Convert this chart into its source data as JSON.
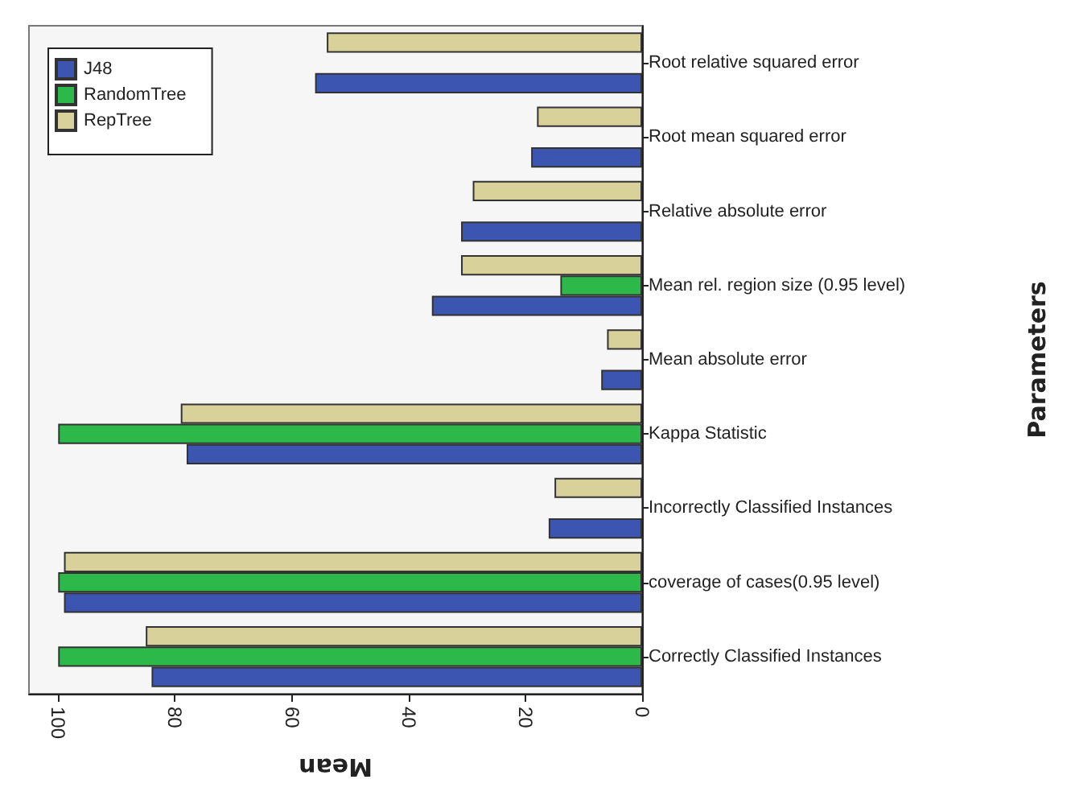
{
  "chart_data": {
    "type": "bar",
    "orientation": "horizontal",
    "xlabel": "Mean",
    "ylabel": "Parameters",
    "categories": [
      "Root relative squared error",
      "Root mean squared error",
      "Relative absolute error",
      "Mean rel. region size (0.95 level)",
      "Mean absolute error",
      "Kappa Statistic",
      "Incorrectly Classified Instances",
      "coverage of cases(0.95 level)",
      "Correctly Classified Instances"
    ],
    "series": [
      {
        "name": "J48",
        "color": "#3b55b0",
        "values": [
          56,
          19,
          31,
          36,
          7,
          78,
          16,
          99,
          84
        ]
      },
      {
        "name": "RandomTree",
        "color": "#2db84a",
        "values": [
          null,
          null,
          null,
          14,
          null,
          100,
          null,
          100,
          100
        ]
      },
      {
        "name": "RepTree",
        "color": "#d9d19a",
        "values": [
          54,
          18,
          29,
          31,
          6,
          79,
          15,
          99,
          85
        ]
      }
    ],
    "xlim": [
      105,
      0
    ],
    "xticks": [
      0,
      20,
      40,
      60,
      80,
      100
    ],
    "legend": "top left"
  }
}
